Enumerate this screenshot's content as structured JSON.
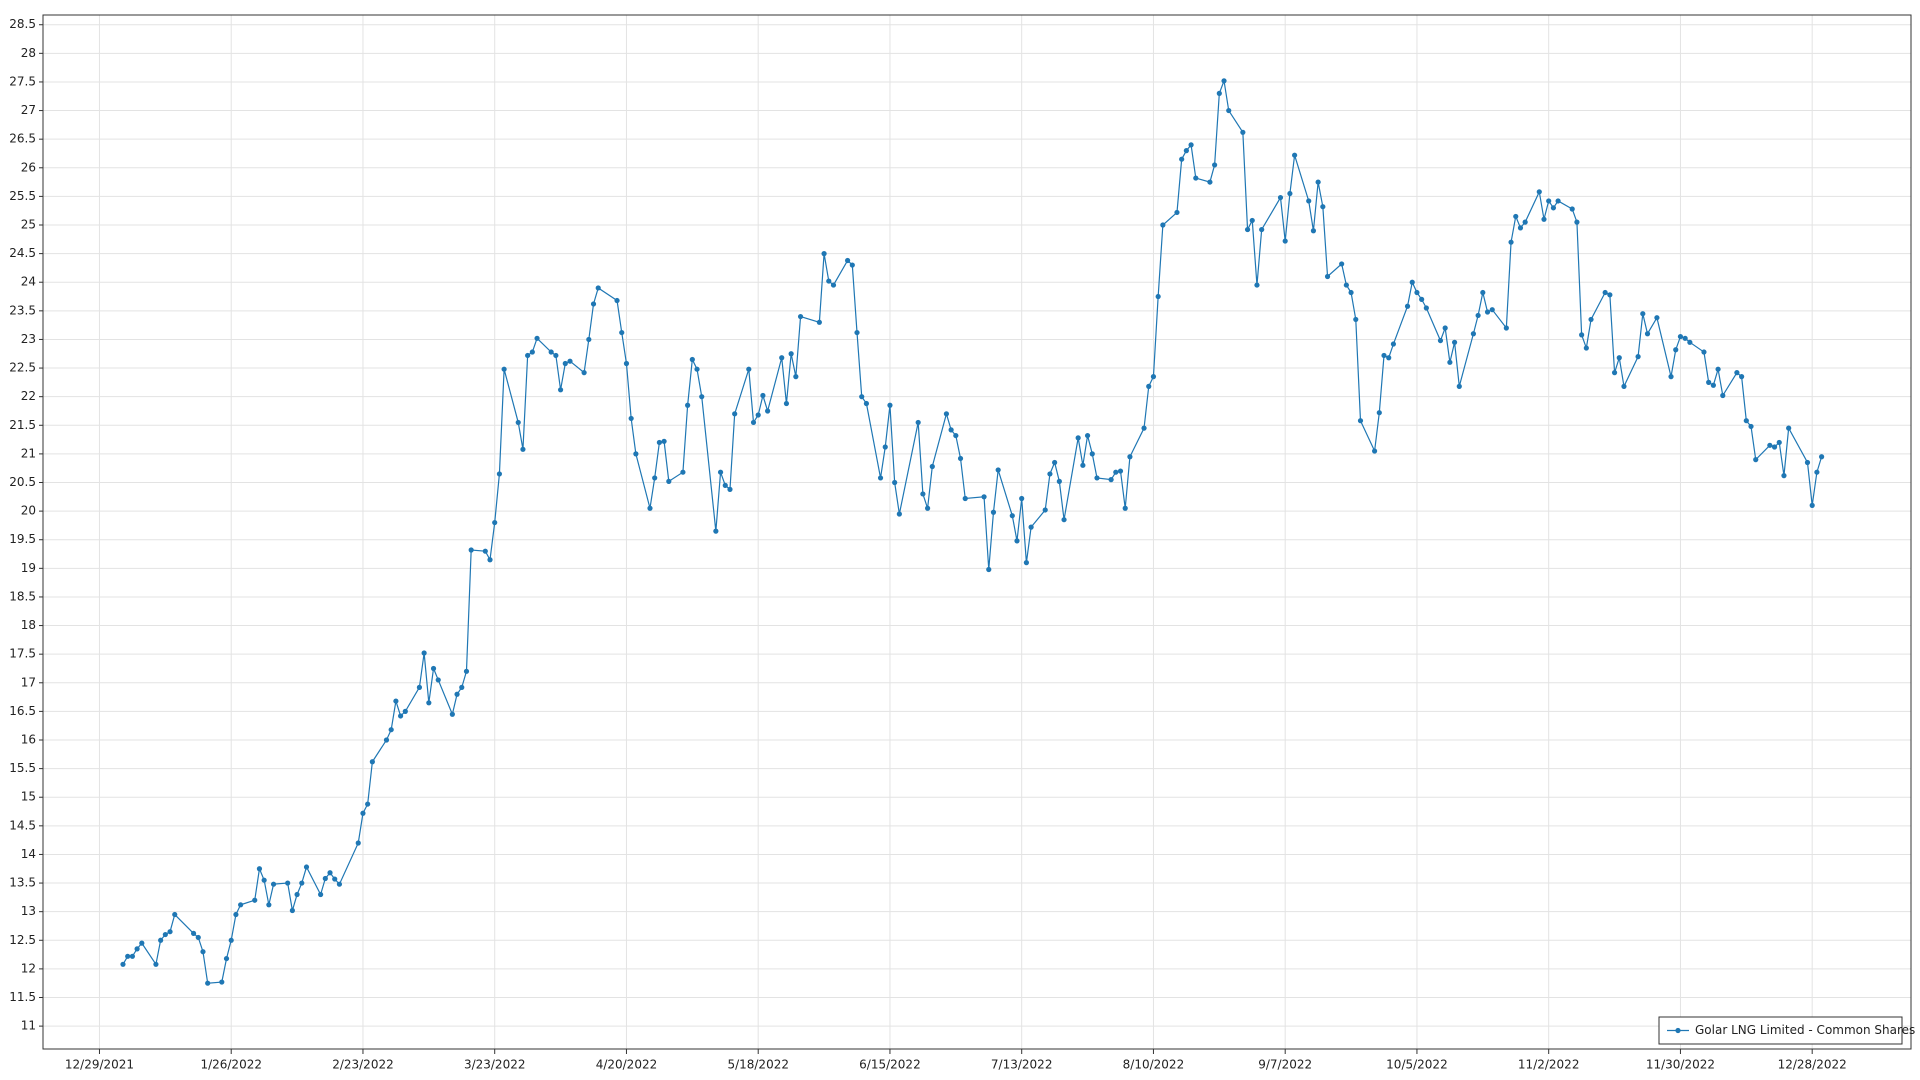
{
  "chart_data": {
    "type": "line",
    "x": [
      "1/3/2022",
      "1/4/2022",
      "1/5/2022",
      "1/6/2022",
      "1/7/2022",
      "1/10/2022",
      "1/11/2022",
      "1/12/2022",
      "1/13/2022",
      "1/14/2022",
      "1/18/2022",
      "1/19/2022",
      "1/20/2022",
      "1/21/2022",
      "1/24/2022",
      "1/25/2022",
      "1/26/2022",
      "1/27/2022",
      "1/28/2022",
      "1/31/2022",
      "2/1/2022",
      "2/2/2022",
      "2/3/2022",
      "2/4/2022",
      "2/7/2022",
      "2/8/2022",
      "2/9/2022",
      "2/10/2022",
      "2/11/2022",
      "2/14/2022",
      "2/15/2022",
      "2/16/2022",
      "2/17/2022",
      "2/18/2022",
      "2/22/2022",
      "2/23/2022",
      "2/24/2022",
      "2/25/2022",
      "2/28/2022",
      "3/1/2022",
      "3/2/2022",
      "3/3/2022",
      "3/4/2022",
      "3/7/2022",
      "3/8/2022",
      "3/9/2022",
      "3/10/2022",
      "3/11/2022",
      "3/14/2022",
      "3/15/2022",
      "3/16/2022",
      "3/17/2022",
      "3/18/2022",
      "3/21/2022",
      "3/22/2022",
      "3/23/2022",
      "3/24/2022",
      "3/25/2022",
      "3/28/2022",
      "3/29/2022",
      "3/30/2022",
      "3/31/2022",
      "4/1/2022",
      "4/4/2022",
      "4/5/2022",
      "4/6/2022",
      "4/7/2022",
      "4/8/2022",
      "4/11/2022",
      "4/12/2022",
      "4/13/2022",
      "4/14/2022",
      "4/18/2022",
      "4/19/2022",
      "4/20/2022",
      "4/21/2022",
      "4/22/2022",
      "4/25/2022",
      "4/26/2022",
      "4/27/2022",
      "4/28/2022",
      "4/29/2022",
      "5/2/2022",
      "5/3/2022",
      "5/4/2022",
      "5/5/2022",
      "5/6/2022",
      "5/9/2022",
      "5/10/2022",
      "5/11/2022",
      "5/12/2022",
      "5/13/2022",
      "5/16/2022",
      "5/17/2022",
      "5/18/2022",
      "5/19/2022",
      "5/20/2022",
      "5/23/2022",
      "5/24/2022",
      "5/25/2022",
      "5/26/2022",
      "5/27/2022",
      "5/31/2022",
      "6/1/2022",
      "6/2/2022",
      "6/3/2022",
      "6/6/2022",
      "6/7/2022",
      "6/8/2022",
      "6/9/2022",
      "6/10/2022",
      "6/13/2022",
      "6/14/2022",
      "6/15/2022",
      "6/16/2022",
      "6/17/2022",
      "6/21/2022",
      "6/22/2022",
      "6/23/2022",
      "6/24/2022",
      "6/27/2022",
      "6/28/2022",
      "6/29/2022",
      "6/30/2022",
      "7/1/2022",
      "7/5/2022",
      "7/6/2022",
      "7/7/2022",
      "7/8/2022",
      "7/11/2022",
      "7/12/2022",
      "7/13/2022",
      "7/14/2022",
      "7/15/2022",
      "7/18/2022",
      "7/19/2022",
      "7/20/2022",
      "7/21/2022",
      "7/22/2022",
      "7/25/2022",
      "7/26/2022",
      "7/27/2022",
      "7/28/2022",
      "7/29/2022",
      "8/1/2022",
      "8/2/2022",
      "8/3/2022",
      "8/4/2022",
      "8/5/2022",
      "8/8/2022",
      "8/9/2022",
      "8/10/2022",
      "8/11/2022",
      "8/12/2022",
      "8/15/2022",
      "8/16/2022",
      "8/17/2022",
      "8/18/2022",
      "8/19/2022",
      "8/22/2022",
      "8/23/2022",
      "8/24/2022",
      "8/25/2022",
      "8/26/2022",
      "8/29/2022",
      "8/30/2022",
      "8/31/2022",
      "9/1/2022",
      "9/2/2022",
      "9/6/2022",
      "9/7/2022",
      "9/8/2022",
      "9/9/2022",
      "9/12/2022",
      "9/13/2022",
      "9/14/2022",
      "9/15/2022",
      "9/16/2022",
      "9/19/2022",
      "9/20/2022",
      "9/21/2022",
      "9/22/2022",
      "9/23/2022",
      "9/26/2022",
      "9/27/2022",
      "9/28/2022",
      "9/29/2022",
      "9/30/2022",
      "10/3/2022",
      "10/4/2022",
      "10/5/2022",
      "10/6/2022",
      "10/7/2022",
      "10/10/2022",
      "10/11/2022",
      "10/12/2022",
      "10/13/2022",
      "10/14/2022",
      "10/17/2022",
      "10/18/2022",
      "10/19/2022",
      "10/20/2022",
      "10/21/2022",
      "10/24/2022",
      "10/25/2022",
      "10/26/2022",
      "10/27/2022",
      "10/28/2022",
      "10/31/2022",
      "11/1/2022",
      "11/2/2022",
      "11/3/2022",
      "11/4/2022",
      "11/7/2022",
      "11/8/2022",
      "11/9/2022",
      "11/10/2022",
      "11/11/2022",
      "11/14/2022",
      "11/15/2022",
      "11/16/2022",
      "11/17/2022",
      "11/18/2022",
      "11/21/2022",
      "11/22/2022",
      "11/23/2022",
      "11/25/2022",
      "11/28/2022",
      "11/29/2022",
      "11/30/2022",
      "12/1/2022",
      "12/2/2022",
      "12/5/2022",
      "12/6/2022",
      "12/7/2022",
      "12/8/2022",
      "12/9/2022",
      "12/12/2022",
      "12/13/2022",
      "12/14/2022",
      "12/15/2022",
      "12/16/2022",
      "12/19/2022",
      "12/20/2022",
      "12/21/2022",
      "12/22/2022",
      "12/23/2022",
      "12/27/2022",
      "12/28/2022",
      "12/29/2022",
      "12/30/2022"
    ],
    "series": [
      {
        "name": "Golar LNG Limited - Common Shares",
        "color": "#1f77b4",
        "values": [
          12.08,
          12.22,
          12.22,
          12.35,
          12.45,
          12.08,
          12.5,
          12.6,
          12.65,
          12.95,
          12.62,
          12.55,
          12.3,
          11.75,
          11.77,
          12.18,
          12.5,
          12.95,
          13.12,
          13.2,
          13.75,
          13.55,
          13.12,
          13.48,
          13.5,
          13.02,
          13.3,
          13.5,
          13.78,
          13.3,
          13.58,
          13.68,
          13.57,
          13.48,
          14.2,
          14.72,
          14.88,
          15.62,
          16.0,
          16.18,
          16.68,
          16.42,
          16.5,
          16.92,
          17.52,
          16.65,
          17.25,
          17.05,
          16.45,
          16.8,
          16.92,
          17.2,
          19.32,
          19.3,
          19.15,
          19.8,
          20.65,
          22.48,
          21.55,
          21.08,
          22.72,
          22.78,
          23.02,
          22.78,
          22.72,
          22.12,
          22.58,
          22.62,
          22.42,
          23.0,
          23.62,
          23.9,
          23.68,
          23.12,
          22.58,
          21.62,
          21.0,
          20.05,
          20.58,
          21.2,
          21.22,
          20.52,
          20.68,
          21.85,
          22.65,
          22.48,
          22.0,
          19.65,
          20.68,
          20.45,
          20.38,
          21.7,
          22.48,
          21.55,
          21.68,
          22.02,
          21.75,
          22.68,
          21.88,
          22.75,
          22.35,
          23.4,
          23.3,
          24.5,
          24.02,
          23.95,
          24.38,
          24.3,
          23.12,
          22.0,
          21.88,
          20.58,
          21.12,
          21.85,
          20.5,
          19.95,
          21.55,
          20.3,
          20.05,
          20.78,
          21.7,
          21.42,
          21.32,
          20.92,
          20.22,
          20.25,
          18.98,
          19.98,
          20.72,
          19.92,
          19.48,
          20.22,
          19.1,
          19.72,
          20.02,
          20.65,
          20.85,
          20.52,
          19.85,
          21.28,
          20.8,
          21.32,
          21.0,
          20.58,
          20.55,
          20.68,
          20.7,
          20.05,
          20.95,
          21.45,
          22.18,
          22.35,
          23.75,
          25.0,
          25.22,
          26.15,
          26.3,
          26.4,
          25.82,
          25.75,
          26.05,
          27.3,
          27.52,
          27.0,
          26.62,
          24.92,
          25.08,
          23.95,
          24.92,
          25.48,
          24.72,
          25.55,
          26.22,
          25.42,
          24.9,
          25.75,
          25.32,
          24.1,
          24.32,
          23.95,
          23.82,
          23.35,
          21.58,
          21.05,
          21.72,
          22.72,
          22.68,
          22.92,
          23.58,
          24.0,
          23.82,
          23.7,
          23.55,
          22.98,
          23.2,
          22.6,
          22.95,
          22.18,
          23.1,
          23.42,
          23.82,
          23.48,
          23.52,
          23.2,
          24.7,
          25.15,
          24.95,
          25.05,
          25.58,
          25.1,
          25.42,
          25.3,
          25.42,
          25.28,
          25.05,
          23.08,
          22.85,
          23.35,
          23.82,
          23.78,
          22.42,
          22.68,
          22.18,
          22.7,
          23.45,
          23.1,
          23.38,
          22.35,
          22.82,
          23.05,
          23.02,
          22.95,
          22.78,
          22.25,
          22.2,
          22.48,
          22.02,
          22.42,
          22.35,
          21.58,
          21.48,
          20.9,
          21.15,
          21.12,
          21.2,
          20.62,
          21.45,
          20.85,
          20.1,
          20.68,
          20.95
        ]
      }
    ],
    "xlim": [
      "12/17/2021",
      "1/18/2023"
    ],
    "xticks": [
      "12/29/2021",
      "1/26/2022",
      "2/23/2022",
      "3/23/2022",
      "4/20/2022",
      "5/18/2022",
      "6/15/2022",
      "7/13/2022",
      "8/10/2022",
      "9/7/2022",
      "10/5/2022",
      "11/2/2022",
      "11/30/2022",
      "12/28/2022"
    ],
    "ylim": [
      10.6,
      28.67
    ],
    "yticks": [
      11,
      11.5,
      12,
      12.5,
      13,
      13.5,
      14,
      14.5,
      15,
      15.5,
      16,
      16.5,
      17,
      17.5,
      18,
      18.5,
      19,
      19.5,
      20,
      20.5,
      21,
      21.5,
      22,
      22.5,
      23,
      23.5,
      24,
      24.5,
      25,
      25.5,
      26,
      26.5,
      27,
      27.5,
      28,
      28.5
    ],
    "grid": true,
    "legend": "lower right"
  }
}
